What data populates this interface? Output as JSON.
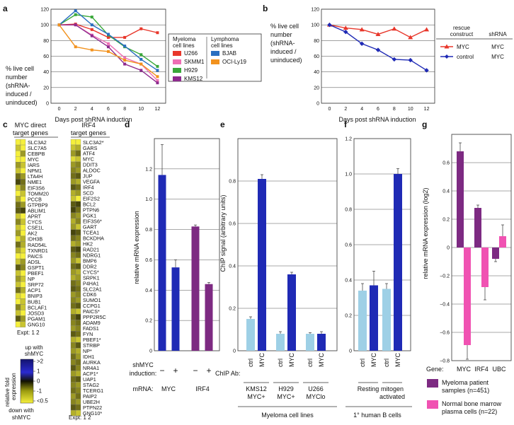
{
  "colors": {
    "u266": "#e8372b",
    "skmm1": "#ee6fb4",
    "h929": "#3aa83a",
    "kms12": "#8e2a8e",
    "bjab": "#2a6fc0",
    "ocily19": "#f2921e",
    "rescue_myc": "#e8372b",
    "rescue_control": "#1f2ab5",
    "bar_light": "#9ed0e6",
    "bar_blue": "#1f2ab5",
    "bar_purple": "#7d2a82",
    "bar_pink": "#f052b2",
    "heat_high": "#14146e",
    "heat_mid": "#1a1a00",
    "heat_low": "#f5ef3c"
  },
  "panels": {
    "a": "a",
    "b": "b",
    "c": "c",
    "d": "d",
    "e": "e",
    "f": "f",
    "g": "g"
  },
  "chart_data": [
    {
      "id": "a",
      "type": "line",
      "ylabel": "% live cell number (shRNA-induced / uninduced)",
      "xlabel": "Days post shRNA induction",
      "x": [
        0,
        2,
        4,
        6,
        8,
        10,
        12
      ],
      "xlim": [
        -1,
        13
      ],
      "ylim": [
        0,
        120
      ],
      "yticks": [
        0,
        20,
        40,
        60,
        80,
        100,
        120
      ],
      "legend_groups": [
        "Myeloma cell lines",
        "Lymphoma cell lines"
      ],
      "series": [
        {
          "name": "U266",
          "group": 0,
          "color": "#e8372b",
          "values": [
            100,
            101,
            94,
            84,
            84,
            95,
            90
          ]
        },
        {
          "name": "SKMM1",
          "group": 0,
          "color": "#ee6fb4",
          "values": [
            100,
            100,
            87,
            76,
            58,
            50,
            29
          ]
        },
        {
          "name": "H929",
          "group": 0,
          "color": "#3aa83a",
          "values": [
            100,
            113,
            110,
            87,
            72,
            62,
            47
          ]
        },
        {
          "name": "KMS12",
          "group": 0,
          "color": "#8e2a8e",
          "values": [
            100,
            100,
            86,
            72,
            50,
            42,
            26
          ]
        },
        {
          "name": "BJAB",
          "group": 1,
          "color": "#2a6fc0",
          "values": [
            100,
            118,
            100,
            88,
            73,
            56,
            42
          ]
        },
        {
          "name": "OCI-Ly19",
          "group": 1,
          "color": "#f2921e",
          "values": [
            100,
            72,
            68,
            66,
            55,
            50,
            34
          ]
        }
      ]
    },
    {
      "id": "b",
      "type": "line",
      "ylabel": "% live cell number (shRNA-induced / uninduced)",
      "xlabel": "Days post shRNA induction",
      "x": [
        0,
        2,
        4,
        6,
        8,
        10,
        12
      ],
      "xlim": [
        -1,
        13
      ],
      "ylim": [
        0,
        120
      ],
      "yticks": [
        0,
        20,
        40,
        60,
        80,
        100,
        120
      ],
      "legend_headers": [
        "rescue construct",
        "shRNA"
      ],
      "series": [
        {
          "name": "MYC",
          "shrna": "MYC",
          "color": "#e8372b",
          "marker": "triangle",
          "values": [
            100,
            96,
            94,
            88,
            95,
            84,
            94
          ]
        },
        {
          "name": "control",
          "shrna": "MYC",
          "color": "#1f2ab5",
          "marker": "diamond",
          "values": [
            100,
            91,
            76,
            68,
            56,
            55,
            42
          ]
        }
      ]
    },
    {
      "id": "c",
      "type": "heatmap",
      "left_title": "MYC direct target genes",
      "right_title": "IRF4 target genes",
      "expt_label": "Expt: 1 2",
      "scale_top": "up with shMYC",
      "scale_bottom": "down with shMYC",
      "scale_axis": "relative fold expression",
      "scale_ticks": [
        ">2",
        "1",
        "0",
        "-1",
        "<0.5"
      ],
      "left_genes": [
        "SLC3A2",
        "SLC7A5",
        "CEBPB",
        "MYC",
        "IARS",
        "NPM1",
        "LTA4H",
        "NME1",
        "EIF3S6",
        "TOMM20",
        "PCCB",
        "GTPBP9",
        "ABLIM1",
        "APRT",
        "CYCS",
        "CSE1L",
        "AK2",
        "IDH3B",
        "RAD54L",
        "TXNRD1",
        "PAICS",
        "ADSL",
        "GSPT1",
        "PBEF1",
        "NP",
        "SRP72",
        "ACP1",
        "BNIP3",
        "BUB1",
        "BCLAF1",
        "JOSD3",
        "PGAM1",
        "GNG10"
      ],
      "left_values": [
        [
          -1,
          -1
        ],
        [
          -0.8,
          -1
        ],
        [
          -1,
          -0.6
        ],
        [
          -1,
          -1
        ],
        [
          -0.6,
          -0.8
        ],
        [
          -0.8,
          -1
        ],
        [
          -0.4,
          -0.6
        ],
        [
          -0.2,
          -0.4
        ],
        [
          -0.8,
          -0.5
        ],
        [
          -1,
          -0.8
        ],
        [
          -0.7,
          -1
        ],
        [
          -0.4,
          -0.6
        ],
        [
          -0.3,
          -0.2
        ],
        [
          -0.8,
          -1
        ],
        [
          -0.5,
          -0.8
        ],
        [
          -0.8,
          -1
        ],
        [
          -0.6,
          -1
        ],
        [
          -0.9,
          -0.7
        ],
        [
          -0.4,
          -0.7
        ],
        [
          -0.7,
          -0.9
        ],
        [
          -1,
          -1
        ],
        [
          -0.8,
          -0.6
        ],
        [
          -0.3,
          -0.5
        ],
        [
          -0.8,
          -1
        ],
        [
          -0.6,
          -0.8
        ],
        [
          -0.8,
          -1
        ],
        [
          -0.4,
          -0.7
        ],
        [
          -0.9,
          -1
        ],
        [
          -1,
          -0.8
        ],
        [
          -0.5,
          -0.8
        ],
        [
          -0.8,
          -1
        ],
        [
          -0.3,
          -0.6
        ],
        [
          -1,
          -0.8
        ]
      ],
      "right_genes": [
        "SLC3A2*",
        "GARS",
        "ATF4",
        "MYC",
        "DDIT3",
        "ALDOC",
        "JUP",
        "VEGFA",
        "IRF4",
        "SCD",
        "EIF2S2",
        "BCL2",
        "PTPN6",
        "PGK1",
        "EIF3S6*",
        "GART",
        "TCEA1",
        "BCKDHA",
        "HK2",
        "RAD21",
        "NDRG1",
        "BMP6",
        "DDR2",
        "CYCS*",
        "SRPK1",
        "P4HA1",
        "SLC2A1",
        "CDK6",
        "SUMO1",
        "CCPG1",
        "PAICS*",
        "PPP2R5C",
        "ADAM9",
        "FADS1",
        "FYN",
        "PBEF1*",
        "STRBP",
        "NP*",
        "IDH1",
        "AURKA",
        "NR4A1",
        "ACP1*",
        "UAP1",
        "STAG2",
        "TCERG1",
        "PAIP2",
        "UBE2H",
        "PTPN22",
        "GNG10*"
      ],
      "right_values": [
        [
          -1,
          -1
        ],
        [
          -0.8,
          -0.7
        ],
        [
          -0.6,
          -0.4
        ],
        [
          -0.9,
          -0.8
        ],
        [
          -0.6,
          -0.5
        ],
        [
          -0.5,
          -0.6
        ],
        [
          -0.4,
          -0.3
        ],
        [
          -0.6,
          -0.7
        ],
        [
          -0.3,
          -0.4
        ],
        [
          -0.7,
          -0.6
        ],
        [
          -0.8,
          -1
        ],
        [
          -0.3,
          -0.2
        ],
        [
          -0.2,
          -0.4
        ],
        [
          -0.5,
          -0.6
        ],
        [
          -0.7,
          -0.5
        ],
        [
          -0.6,
          -0.8
        ],
        [
          -0.2,
          -0.3
        ],
        [
          -0.4,
          -0.5
        ],
        [
          -0.7,
          -0.6
        ],
        [
          -0.3,
          -0.2
        ],
        [
          -0.5,
          -0.4
        ],
        [
          -0.6,
          -0.8
        ],
        [
          -0.4,
          -0.3
        ],
        [
          -0.6,
          -0.7
        ],
        [
          -0.7,
          -0.6
        ],
        [
          -0.4,
          -0.5
        ],
        [
          -0.3,
          -0.4
        ],
        [
          -0.6,
          -0.5
        ],
        [
          -0.5,
          -0.6
        ],
        [
          -0.4,
          -0.3
        ],
        [
          -0.7,
          -0.8
        ],
        [
          -0.4,
          -0.2
        ],
        [
          -0.5,
          -0.4
        ],
        [
          -0.6,
          -0.5
        ],
        [
          -0.3,
          -0.4
        ],
        [
          -0.7,
          -0.8
        ],
        [
          -0.5,
          -0.3
        ],
        [
          -0.6,
          -0.7
        ],
        [
          -0.4,
          -0.6
        ],
        [
          -0.5,
          -0.4
        ],
        [
          -0.3,
          -0.5
        ],
        [
          -0.6,
          -0.7
        ],
        [
          -0.4,
          -0.3
        ],
        [
          -0.5,
          -0.6
        ],
        [
          -0.4,
          -0.5
        ],
        [
          -0.6,
          -0.4
        ],
        [
          -0.5,
          -0.6
        ],
        [
          -0.3,
          -0.4
        ],
        [
          -0.7,
          -0.8
        ]
      ]
    },
    {
      "id": "d",
      "type": "bar",
      "ylabel": "relative mRNA expression",
      "ylim": [
        0,
        1.4
      ],
      "yticks": [
        0,
        0.2,
        0.4,
        0.6,
        0.8,
        1.0,
        1.2,
        1.4
      ],
      "ytick_labels": [
        "0",
        "0.2",
        "0.4",
        "0.6",
        "0.8",
        "1.0",
        "1.2",
        ""
      ],
      "row_labels": [
        "shMYC induction:",
        "mRNA:"
      ],
      "induction": [
        "−",
        "+",
        "−",
        "+"
      ],
      "mrna": [
        "MYC",
        "IRF4"
      ],
      "values": [
        1.16,
        0.55,
        0.82,
        0.44
      ],
      "errors": [
        0.2,
        0.05,
        0.01,
        0.01
      ],
      "bar_colors": [
        "#1f2ab5",
        "#1f2ab5",
        "#7d2a82",
        "#7d2a82"
      ]
    },
    {
      "id": "e",
      "type": "bar",
      "ylabel": "ChIP signal (arbitrary units)",
      "ylim": [
        0,
        1.0
      ],
      "yticks": [
        0,
        0.2,
        0.4,
        0.6,
        0.8,
        1.0
      ],
      "ytick_labels": [
        "0",
        "0.2",
        "0.4",
        "0.6",
        "0.8",
        ""
      ],
      "axis_row_label": "ChIP Ab:",
      "antibodies": [
        "ctrl",
        "MYC",
        "ctrl",
        "MYC",
        "ctrl",
        "MYC"
      ],
      "values": [
        0.15,
        0.81,
        0.08,
        0.36,
        0.08,
        0.08
      ],
      "errors": [
        0.01,
        0.02,
        0.01,
        0.01,
        0.005,
        0.01
      ],
      "groups": [
        [
          "KMS12",
          "MYC+"
        ],
        [
          "H929",
          "MYC+"
        ],
        [
          "U266",
          "MYClo"
        ]
      ],
      "footer": "Myeloma cell lines"
    },
    {
      "id": "f",
      "type": "bar",
      "ylim": [
        0,
        1.2
      ],
      "yticks": [
        0,
        0.2,
        0.4,
        0.6,
        0.8,
        1.0,
        1.2
      ],
      "ytick_labels": [
        "0",
        "0.2",
        "0.4",
        "0.6",
        "0.8",
        "1.0",
        "1.2"
      ],
      "antibodies": [
        "ctrl",
        "MYC",
        "ctrl",
        "MYC"
      ],
      "values": [
        0.34,
        0.37,
        0.35,
        1.0
      ],
      "errors": [
        0.04,
        0.08,
        0.03,
        0.03
      ],
      "groups": [
        [
          "Resting"
        ],
        [
          "mitogen",
          "activated"
        ]
      ],
      "footer": "1° human B cells"
    },
    {
      "id": "g",
      "type": "bar",
      "ylabel": "relative mRNA expression (log2)",
      "ylim": [
        -0.8,
        0.8
      ],
      "yticks": [
        -0.8,
        -0.6,
        -0.4,
        -0.2,
        0,
        0.2,
        0.4,
        0.6,
        0.8
      ],
      "ytick_labels": [
        "−0.8",
        "−0.6",
        "−0.4",
        "−0.2",
        "0",
        "0.2",
        "0.4",
        "0.6",
        ""
      ],
      "gene_label": "Gene:",
      "categories": [
        "MYC",
        "IRF4",
        "UBC"
      ],
      "series": [
        {
          "name": "Myeloma patient samples (n=451)",
          "color": "#7d2a82",
          "values": [
            0.68,
            0.28,
            -0.08
          ],
          "errors": [
            0.06,
            0.02,
            0.02
          ]
        },
        {
          "name": "Normal bone marrow plasma cells (n=22)",
          "color": "#f052b2",
          "values": [
            -0.69,
            -0.28,
            0.08
          ],
          "errors": [
            0.1,
            0.09,
            0.08
          ]
        }
      ],
      "legend_lines": [
        [
          "Myeloma patient",
          "samples (n=451)"
        ],
        [
          "Normal bone marrow",
          "plasma cells (n=22)"
        ]
      ]
    }
  ]
}
